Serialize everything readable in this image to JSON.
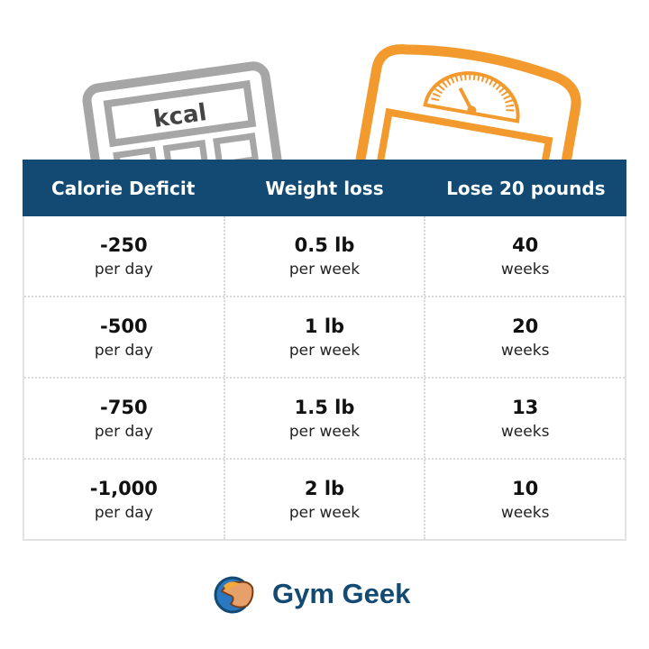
{
  "illustrations": {
    "calculator_label": "kcal",
    "calculator_color": "#a6a6a6",
    "scale_color": "#f29a2e"
  },
  "table": {
    "header_color": "#124a73",
    "headers": [
      "Calorie Deficit",
      "Weight loss",
      "Lose 20 pounds"
    ],
    "rows": [
      [
        {
          "value": "-250",
          "unit": "per day"
        },
        {
          "value": "0.5 lb",
          "unit": "per week"
        },
        {
          "value": "40",
          "unit": "weeks"
        }
      ],
      [
        {
          "value": "-500",
          "unit": "per day"
        },
        {
          "value": "1 lb",
          "unit": "per week"
        },
        {
          "value": "20",
          "unit": "weeks"
        }
      ],
      [
        {
          "value": "-750",
          "unit": "per day"
        },
        {
          "value": "1.5 lb",
          "unit": "per week"
        },
        {
          "value": "13",
          "unit": "weeks"
        }
      ],
      [
        {
          "value": "-1,000",
          "unit": "per day"
        },
        {
          "value": "2 lb",
          "unit": "per week"
        },
        {
          "value": "10",
          "unit": "weeks"
        }
      ]
    ]
  },
  "brand": {
    "name": "Gym Geek",
    "icon": "flexing-arm-globe-logo"
  }
}
